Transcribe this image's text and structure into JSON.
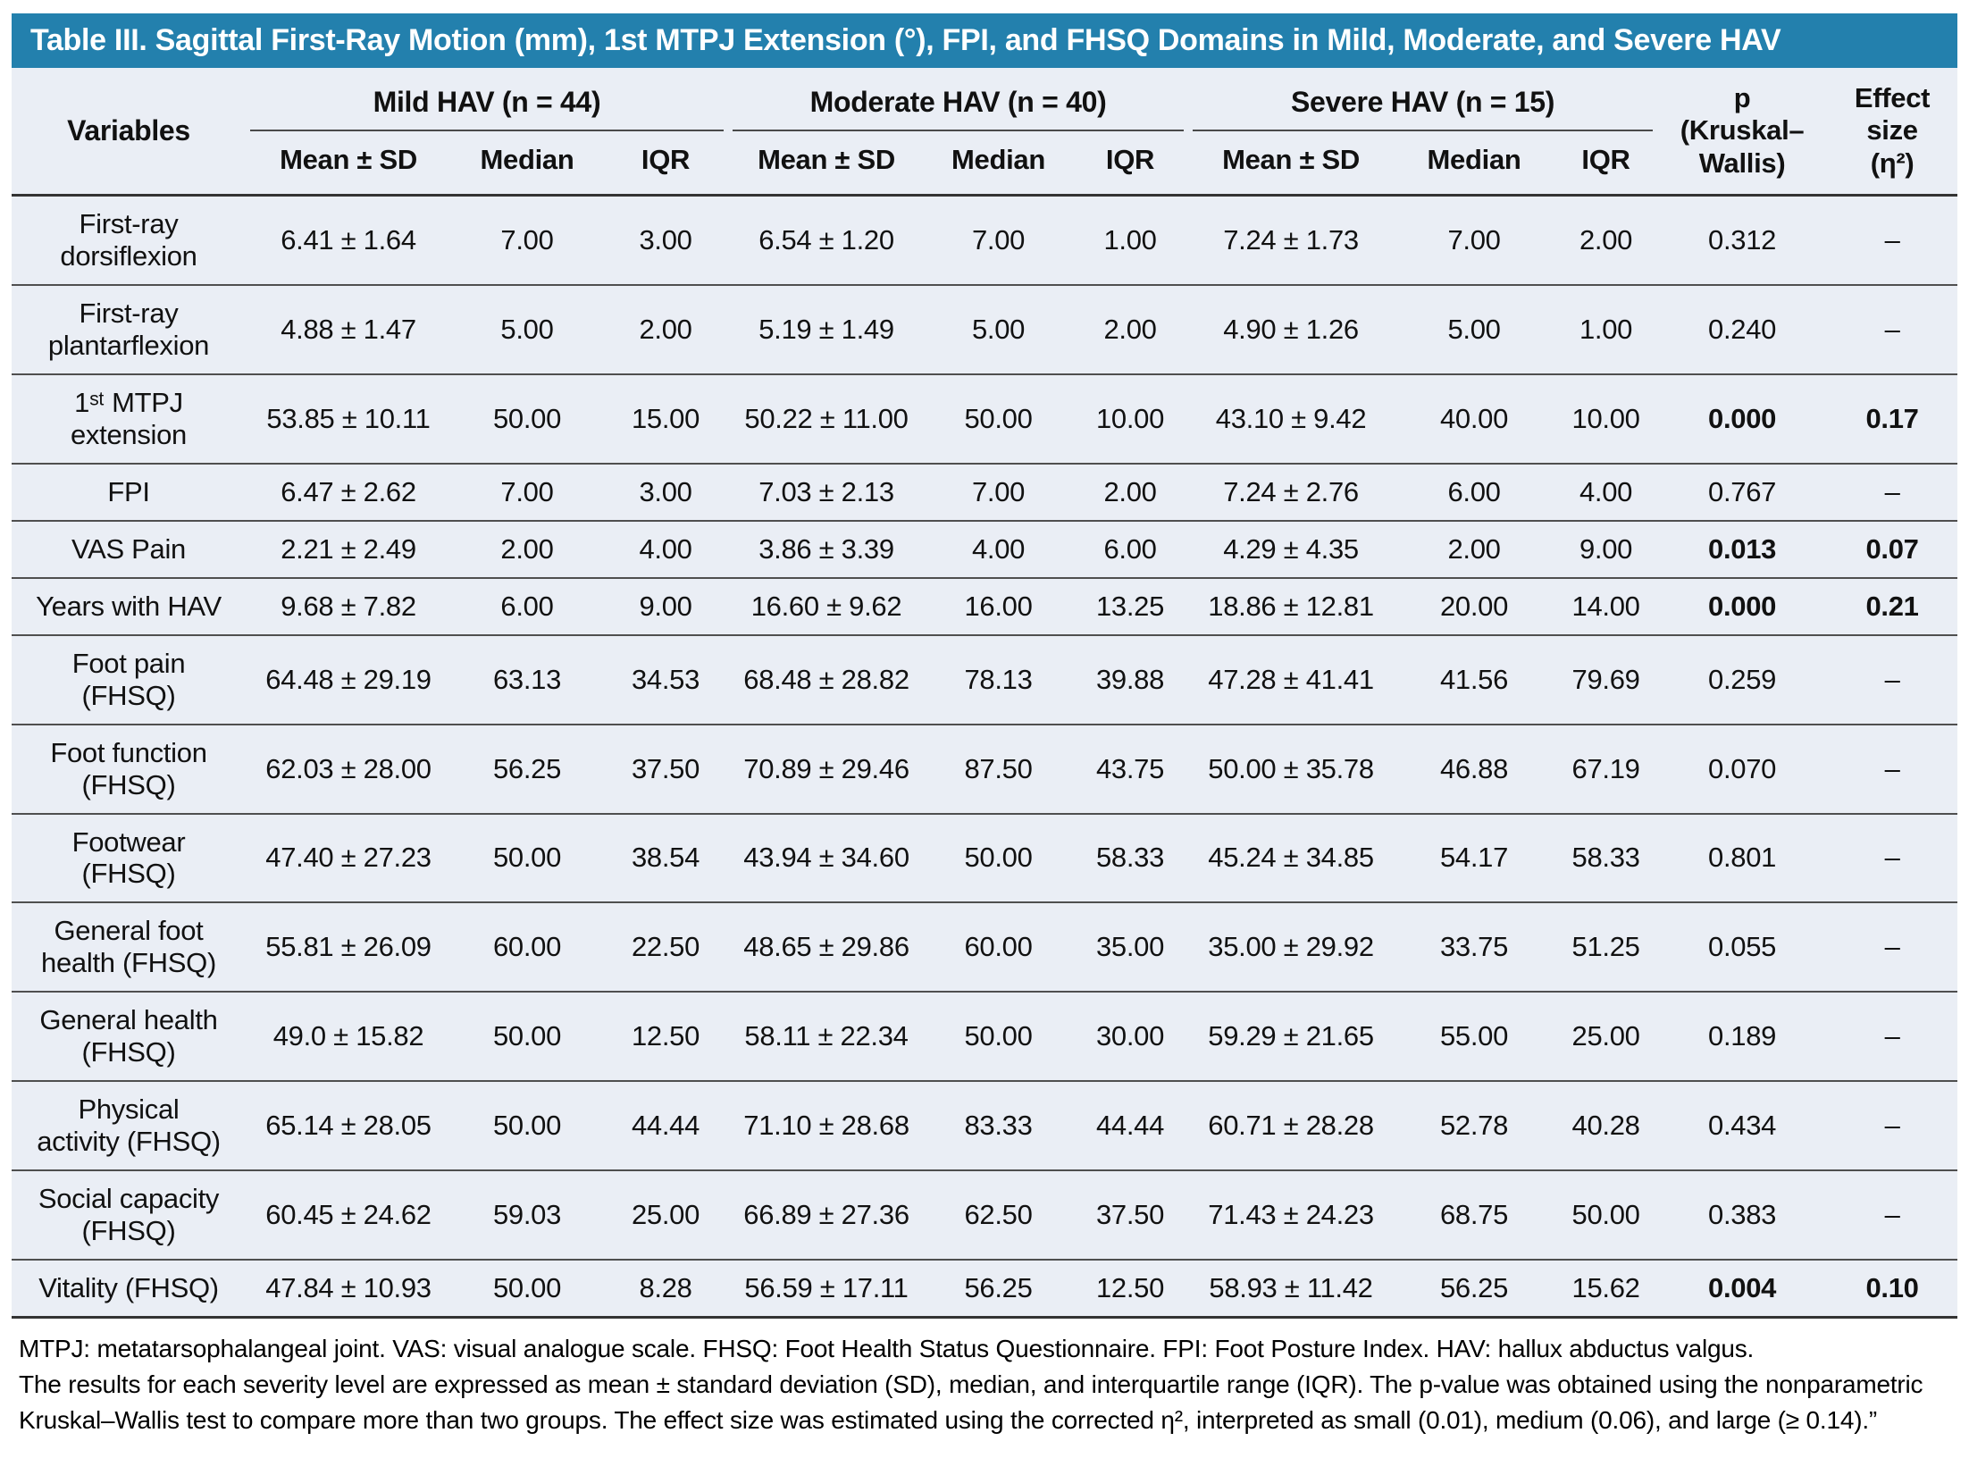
{
  "title": "Table III. Sagittal First-Ray Motion (mm), 1st MTPJ Extension (°), FPI, and FHSQ Domains in Mild, Moderate, and Severe HAV",
  "colors": {
    "title_bar": "#2380AD",
    "table_background": "#EAEEF5",
    "rule": "#4a4a4a",
    "title_text": "#ffffff"
  },
  "header": {
    "variables": "Variables",
    "groups": [
      {
        "label": "Mild HAV (n = 44)"
      },
      {
        "label": "Moderate HAV (n = 40)"
      },
      {
        "label": "Severe HAV (n = 15)"
      }
    ],
    "sub": [
      "Mean ± SD",
      "Median",
      "IQR"
    ],
    "p": "p\n(Kruskal–\nWallis)",
    "effect": "Effect\nsize\n(η²)"
  },
  "table": {
    "rows": [
      {
        "variable": "First-ray\ndorsiflexion",
        "mild": [
          "6.41 ± 1.64",
          "7.00",
          "3.00"
        ],
        "moderate": [
          "6.54 ± 1.20",
          "7.00",
          "1.00"
        ],
        "severe": [
          "7.24 ± 1.73",
          "7.00",
          "2.00"
        ],
        "p": "0.312",
        "effect": "–",
        "significant": false
      },
      {
        "variable": "First-ray\nplantarflexion",
        "mild": [
          "4.88 ± 1.47",
          "5.00",
          "2.00"
        ],
        "moderate": [
          "5.19 ± 1.49",
          "5.00",
          "2.00"
        ],
        "severe": [
          "4.90 ± 1.26",
          "5.00",
          "1.00"
        ],
        "p": "0.240",
        "effect": "–",
        "significant": false
      },
      {
        "variable": "1ˢᵗ MTPJ\nextension",
        "mild": [
          "53.85 ± 10.11",
          "50.00",
          "15.00"
        ],
        "moderate": [
          "50.22 ± 11.00",
          "50.00",
          "10.00"
        ],
        "severe": [
          "43.10 ± 9.42",
          "40.00",
          "10.00"
        ],
        "p": "0.000",
        "effect": "0.17",
        "significant": true
      },
      {
        "variable": "FPI",
        "mild": [
          "6.47 ± 2.62",
          "7.00",
          "3.00"
        ],
        "moderate": [
          "7.03 ± 2.13",
          "7.00",
          "2.00"
        ],
        "severe": [
          "7.24 ± 2.76",
          "6.00",
          "4.00"
        ],
        "p": "0.767",
        "effect": "–",
        "significant": false
      },
      {
        "variable": "VAS Pain",
        "mild": [
          "2.21 ± 2.49",
          "2.00",
          "4.00"
        ],
        "moderate": [
          "3.86 ± 3.39",
          "4.00",
          "6.00"
        ],
        "severe": [
          "4.29 ± 4.35",
          "2.00",
          "9.00"
        ],
        "p": "0.013",
        "effect": "0.07",
        "significant": true
      },
      {
        "variable": "Years with HAV",
        "mild": [
          "9.68 ± 7.82",
          "6.00",
          "9.00"
        ],
        "moderate": [
          "16.60 ± 9.62",
          "16.00",
          "13.25"
        ],
        "severe": [
          "18.86 ± 12.81",
          "20.00",
          "14.00"
        ],
        "p": "0.000",
        "effect": "0.21",
        "significant": true
      },
      {
        "variable": "Foot pain\n(FHSQ)",
        "mild": [
          "64.48 ± 29.19",
          "63.13",
          "34.53"
        ],
        "moderate": [
          "68.48 ± 28.82",
          "78.13",
          "39.88"
        ],
        "severe": [
          "47.28 ± 41.41",
          "41.56",
          "79.69"
        ],
        "p": "0.259",
        "effect": "–",
        "significant": false
      },
      {
        "variable": "Foot function\n(FHSQ)",
        "mild": [
          "62.03 ± 28.00",
          "56.25",
          "37.50"
        ],
        "moderate": [
          "70.89 ± 29.46",
          "87.50",
          "43.75"
        ],
        "severe": [
          "50.00 ± 35.78",
          "46.88",
          "67.19"
        ],
        "p": "0.070",
        "effect": "–",
        "significant": false
      },
      {
        "variable": "Footwear\n(FHSQ)",
        "mild": [
          "47.40 ± 27.23",
          "50.00",
          "38.54"
        ],
        "moderate": [
          "43.94 ± 34.60",
          "50.00",
          "58.33"
        ],
        "severe": [
          "45.24 ± 34.85",
          "54.17",
          "58.33"
        ],
        "p": "0.801",
        "effect": "–",
        "significant": false
      },
      {
        "variable": "General foot\nhealth (FHSQ)",
        "mild": [
          "55.81 ± 26.09",
          "60.00",
          "22.50"
        ],
        "moderate": [
          "48.65 ± 29.86",
          "60.00",
          "35.00"
        ],
        "severe": [
          "35.00 ± 29.92",
          "33.75",
          "51.25"
        ],
        "p": "0.055",
        "effect": "–",
        "significant": false
      },
      {
        "variable": "General health\n(FHSQ)",
        "mild": [
          "49.0 ± 15.82",
          "50.00",
          "12.50"
        ],
        "moderate": [
          "58.11 ± 22.34",
          "50.00",
          "30.00"
        ],
        "severe": [
          "59.29 ± 21.65",
          "55.00",
          "25.00"
        ],
        "p": "0.189",
        "effect": "–",
        "significant": false
      },
      {
        "variable": "Physical\nactivity (FHSQ)",
        "mild": [
          "65.14 ± 28.05",
          "50.00",
          "44.44"
        ],
        "moderate": [
          "71.10 ± 28.68",
          "83.33",
          "44.44"
        ],
        "severe": [
          "60.71 ± 28.28",
          "52.78",
          "40.28"
        ],
        "p": "0.434",
        "effect": "–",
        "significant": false
      },
      {
        "variable": "Social capacity\n(FHSQ)",
        "mild": [
          "60.45 ± 24.62",
          "59.03",
          "25.00"
        ],
        "moderate": [
          "66.89 ± 27.36",
          "62.50",
          "37.50"
        ],
        "severe": [
          "71.43 ± 24.23",
          "68.75",
          "50.00"
        ],
        "p": "0.383",
        "effect": "–",
        "significant": false
      },
      {
        "variable": "Vitality (FHSQ)",
        "mild": [
          "47.84 ± 10.93",
          "50.00",
          "8.28"
        ],
        "moderate": [
          "56.59 ± 17.11",
          "56.25",
          "12.50"
        ],
        "severe": [
          "58.93 ± 11.42",
          "56.25",
          "15.62"
        ],
        "p": "0.004",
        "effect": "0.10",
        "significant": true
      }
    ]
  },
  "footnotes": [
    "MTPJ: metatarsophalangeal joint. VAS: visual analogue scale. FHSQ: Foot Health Status Questionnaire. FPI: Foot Posture Index. HAV: hallux abductus valgus.",
    "The results for each severity level are expressed as mean ± standard deviation (SD), median, and interquartile range (IQR). The p-value was obtained using the nonparametric",
    "Kruskal–Wallis test to compare more than two groups. The effect size was estimated using the corrected η², interpreted as small (0.01), medium (0.06), and large (≥ 0.14).”"
  ]
}
